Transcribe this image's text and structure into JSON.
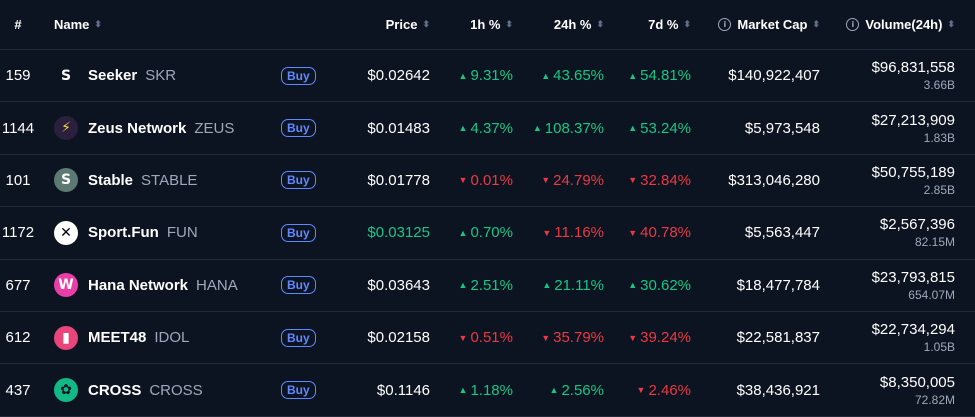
{
  "headers": {
    "rank": "#",
    "name": "Name",
    "price": "Price",
    "change_1h": "1h %",
    "change_24h": "24h %",
    "change_7d": "7d %",
    "market_cap": "Market Cap",
    "volume": "Volume(24h)"
  },
  "buy_label": "Buy",
  "colors": {
    "up": "#16c784",
    "down": "#ea3943",
    "buy": "#6188ff",
    "background": "#0d1421"
  },
  "rows": [
    {
      "rank": "159",
      "name": "Seeker",
      "symbol": "SKR",
      "price": "$0.02642",
      "price_color": "default",
      "h1": "9.31%",
      "h1_dir": "up",
      "h24": "43.65%",
      "h24_dir": "up",
      "d7": "54.81%",
      "d7_dir": "up",
      "mcap": "$140,922,407",
      "vol": "$96,831,558",
      "vol_sub": "3.66B",
      "icon": "seeker-icon"
    },
    {
      "rank": "1144",
      "name": "Zeus Network",
      "symbol": "ZEUS",
      "price": "$0.01483",
      "price_color": "default",
      "h1": "4.37%",
      "h1_dir": "up",
      "h24": "108.37%",
      "h24_dir": "up",
      "d7": "53.24%",
      "d7_dir": "up",
      "mcap": "$5,973,548",
      "vol": "$27,213,909",
      "vol_sub": "1.83B",
      "icon": "zeus-icon"
    },
    {
      "rank": "101",
      "name": "Stable",
      "symbol": "STABLE",
      "price": "$0.01778",
      "price_color": "default",
      "h1": "0.01%",
      "h1_dir": "down",
      "h24": "24.79%",
      "h24_dir": "down",
      "d7": "32.84%",
      "d7_dir": "down",
      "mcap": "$313,046,280",
      "vol": "$50,755,189",
      "vol_sub": "2.85B",
      "icon": "stable-icon"
    },
    {
      "rank": "1172",
      "name": "Sport.Fun",
      "symbol": "FUN",
      "price": "$0.03125",
      "price_color": "up",
      "h1": "0.70%",
      "h1_dir": "up",
      "h24": "11.16%",
      "h24_dir": "down",
      "d7": "40.78%",
      "d7_dir": "down",
      "mcap": "$5,563,447",
      "vol": "$2,567,396",
      "vol_sub": "82.15M",
      "icon": "sportfun-icon"
    },
    {
      "rank": "677",
      "name": "Hana Network",
      "symbol": "HANA",
      "price": "$0.03643",
      "price_color": "default",
      "h1": "2.51%",
      "h1_dir": "up",
      "h24": "21.11%",
      "h24_dir": "up",
      "d7": "30.62%",
      "d7_dir": "up",
      "mcap": "$18,477,784",
      "vol": "$23,793,815",
      "vol_sub": "654.07M",
      "icon": "hana-icon"
    },
    {
      "rank": "612",
      "name": "MEET48",
      "symbol": "IDOL",
      "price": "$0.02158",
      "price_color": "default",
      "h1": "0.51%",
      "h1_dir": "down",
      "h24": "35.79%",
      "h24_dir": "down",
      "d7": "39.24%",
      "d7_dir": "down",
      "mcap": "$22,581,837",
      "vol": "$22,734,294",
      "vol_sub": "1.05B",
      "icon": "meet48-icon"
    },
    {
      "rank": "437",
      "name": "CROSS",
      "symbol": "CROSS",
      "price": "$0.1146",
      "price_color": "default",
      "h1": "1.18%",
      "h1_dir": "up",
      "h24": "2.56%",
      "h24_dir": "up",
      "d7": "2.46%",
      "d7_dir": "down",
      "mcap": "$38,436,921",
      "vol": "$8,350,005",
      "vol_sub": "72.82M",
      "icon": "cross-icon"
    }
  ]
}
